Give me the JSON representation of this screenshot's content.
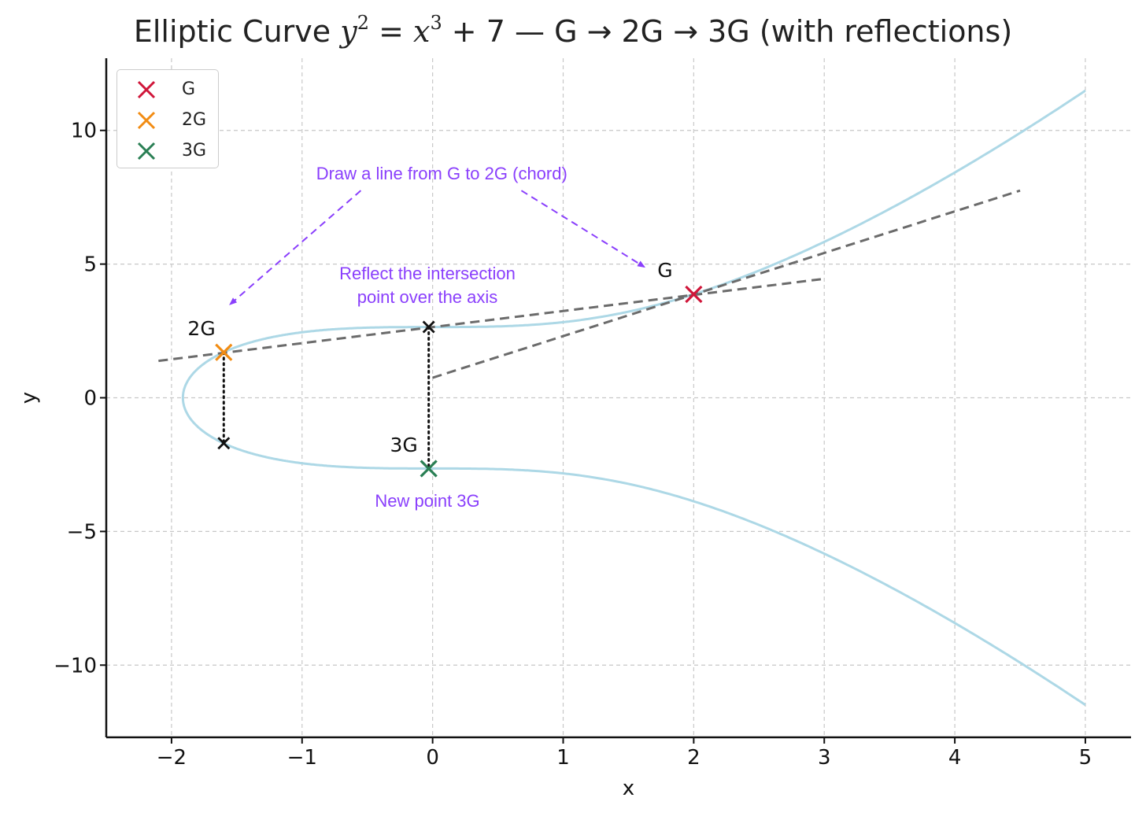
{
  "title": {
    "prefix": "Elliptic Curve ",
    "lhs_base": "y",
    "lhs_exp": "2",
    "eq": " = ",
    "rhs_base": "x",
    "rhs_exp": "3",
    "rhs_rest": " + 7",
    "suffix": " — G → 2G → 3G (with reflections)"
  },
  "legend": [
    {
      "label": "G",
      "color": "#d0163a"
    },
    {
      "label": "2G",
      "color": "#f28c13"
    },
    {
      "label": "3G",
      "color": "#2a7f54"
    }
  ],
  "annotations": {
    "chord": "Draw a line from G to 2G (chord)",
    "reflect_line1": "Reflect the intersection",
    "reflect_line2": "point over the axis",
    "new_point": "New point 3G"
  },
  "chart_data": {
    "type": "line",
    "title": "Elliptic Curve y^2 = x^3 + 7 — G → 2G → 3G (with reflections)",
    "xlabel": "x",
    "ylabel": "y",
    "xlim": [
      -2.5,
      5.35
    ],
    "ylim": [
      -12.7,
      12.7
    ],
    "xticks": [
      -2,
      -1,
      0,
      1,
      2,
      3,
      4,
      5
    ],
    "yticks": [
      -10,
      -5,
      0,
      5,
      10
    ],
    "xtick_labels": [
      "−2",
      "−1",
      "0",
      "1",
      "2",
      "3",
      "4",
      "5"
    ],
    "ytick_labels": [
      "−10",
      "−5",
      "0",
      "5",
      "10"
    ],
    "grid": true,
    "legend_position": "upper-left",
    "curve": {
      "equation": "y^2 = x^3 + 7",
      "x_min": -1.913,
      "x_max": 5,
      "color": "#add8e6"
    },
    "points": [
      {
        "name": "G",
        "label": "G",
        "x": 2.0,
        "y": 3.87,
        "color": "#d0163a"
      },
      {
        "name": "2G",
        "label": "2G",
        "x": -1.6,
        "y": 1.7,
        "color": "#f28c13"
      },
      {
        "name": "3G",
        "label": "3G",
        "x": -0.03,
        "y": -2.65,
        "color": "#2a7f54"
      }
    ],
    "helper_points": [
      {
        "name": "reflect-2G",
        "x": -1.6,
        "y": -1.7
      },
      {
        "name": "intersection",
        "x": -0.03,
        "y": 2.65
      }
    ],
    "dashed_lines": [
      {
        "name": "tangent-at-G",
        "x1": 0.0,
        "y1": 0.75,
        "x2": 4.5,
        "y2": 7.75
      },
      {
        "name": "chord-G-2G",
        "x1": -2.1,
        "y1": 1.38,
        "x2": 3.0,
        "y2": 4.45
      }
    ],
    "dotted_lines": [
      {
        "name": "reflection-2G",
        "x": -1.6,
        "y1": 1.7,
        "y2": -1.7
      },
      {
        "name": "reflection-3G",
        "x": -0.03,
        "y1": 2.65,
        "y2": -2.65
      }
    ],
    "annotation_arrows": [
      {
        "name": "arrow-to-2G",
        "x1": -0.55,
        "y1": 7.75,
        "x2": -1.55,
        "y2": 3.5
      },
      {
        "name": "arrow-to-G",
        "x1": 0.68,
        "y1": 7.75,
        "x2": 1.62,
        "y2": 4.9
      }
    ],
    "annotation_color": "#8a3ffc"
  }
}
